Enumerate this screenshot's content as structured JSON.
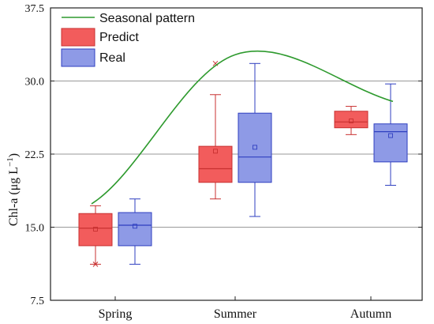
{
  "chart_data": {
    "type": "box",
    "ylabel_main": "Chl-a (μg L",
    "ylabel_sup": "−1",
    "ylabel_tail": ")",
    "ylim": [
      7.5,
      37.5
    ],
    "yticks": [
      7.5,
      15.0,
      22.5,
      30.0,
      37.5
    ],
    "ytick_labels": [
      "7.5",
      "15.0",
      "22.5",
      "30.0",
      "37.5"
    ],
    "grid": true,
    "legend": {
      "position": "top-left",
      "entries": [
        {
          "key": "seasonal",
          "label": "Seasonal pattern"
        },
        {
          "key": "predict",
          "label": "Predict"
        },
        {
          "key": "real",
          "label": "Real"
        }
      ]
    },
    "categories": [
      "Spring",
      "Summer",
      "Autumn"
    ],
    "series": [
      {
        "name": "Predict",
        "color": "#f25c5c",
        "edge": "#c83030",
        "boxes": [
          {
            "min": 11.2,
            "q1": 13.1,
            "median": 14.9,
            "q3": 16.4,
            "max": 17.2,
            "mean": 14.8,
            "outliers": [
              11.2
            ]
          },
          {
            "min": 17.9,
            "q1": 19.6,
            "median": 21.0,
            "q3": 23.3,
            "max": 28.6,
            "mean": 22.8,
            "outliers": [
              31.8
            ]
          },
          {
            "min": 24.5,
            "q1": 25.2,
            "median": 25.8,
            "q3": 26.9,
            "max": 27.4,
            "mean": 25.9,
            "outliers": []
          }
        ]
      },
      {
        "name": "Real",
        "color": "#8e9ae6",
        "edge": "#2f3fc0",
        "boxes": [
          {
            "min": 11.2,
            "q1": 13.1,
            "median": 15.2,
            "q3": 16.5,
            "max": 17.9,
            "mean": 15.1,
            "outliers": []
          },
          {
            "min": 16.1,
            "q1": 19.6,
            "median": 22.2,
            "q3": 26.7,
            "max": 31.8,
            "mean": 23.2,
            "outliers": []
          },
          {
            "min": 19.3,
            "q1": 21.7,
            "median": 24.8,
            "q3": 25.6,
            "max": 29.7,
            "mean": 24.4,
            "outliers": []
          }
        ]
      }
    ],
    "seasonal_pattern": {
      "name": "Seasonal pattern",
      "color": "#2e9a2e",
      "points": [
        {
          "season": "Spring",
          "value": 17.4
        },
        {
          "season": "Summer",
          "value": 32.7
        },
        {
          "season": "Autumn",
          "value": 27.9
        }
      ]
    }
  }
}
